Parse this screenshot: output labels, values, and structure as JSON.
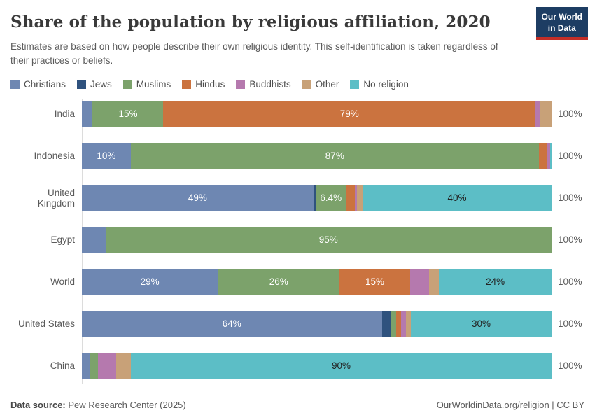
{
  "header": {
    "title": "Share of the population by religious affiliation, 2020",
    "subtitle": "Estimates are based on how people describe their own religious identity. This self-identification is taken regardless of their practices or beliefs.",
    "logo": {
      "line1": "Our World",
      "line2": "in Data",
      "bg_color": "#1d3d63",
      "accent_color": "#c32e27"
    }
  },
  "legend": [
    {
      "label": "Christians",
      "color": "#6e87b2"
    },
    {
      "label": "Jews",
      "color": "#2f527e"
    },
    {
      "label": "Muslims",
      "color": "#7ca26b"
    },
    {
      "label": "Hindus",
      "color": "#cb733f"
    },
    {
      "label": "Buddhists",
      "color": "#b579ae"
    },
    {
      "label": "Other",
      "color": "#c8a178"
    },
    {
      "label": "No religion",
      "color": "#5cbec6"
    }
  ],
  "label_colors": {
    "light": "#ffffff",
    "dark": "#222222"
  },
  "chart_data": {
    "type": "bar",
    "variant": "stacked-horizontal",
    "unit": "%",
    "xlim": [
      0,
      100
    ],
    "bar_total_label": "100%",
    "categories": [
      "India",
      "Indonesia",
      "United Kingdom",
      "Egypt",
      "World",
      "United States",
      "China"
    ],
    "series": [
      {
        "name": "Christians",
        "values": [
          2.3,
          10.4,
          49,
          5,
          29,
          64,
          1.7
        ]
      },
      {
        "name": "Jews",
        "values": [
          0,
          0,
          0.5,
          0,
          0,
          1.8,
          0
        ]
      },
      {
        "name": "Muslims",
        "values": [
          15,
          87,
          6.4,
          95,
          26,
          1.3,
          1.8
        ]
      },
      {
        "name": "Hindus",
        "values": [
          79,
          1.7,
          1.8,
          0,
          15,
          1.0,
          0
        ]
      },
      {
        "name": "Buddhists",
        "values": [
          0.8,
          0.7,
          0.5,
          0,
          4,
          1.1,
          3.9
        ]
      },
      {
        "name": "Other",
        "values": [
          2.6,
          0,
          1.2,
          0,
          2.2,
          1.0,
          3.1
        ]
      },
      {
        "name": "No religion",
        "values": [
          0,
          0.3,
          40,
          0,
          24,
          30,
          90
        ]
      }
    ]
  },
  "rows": [
    {
      "country": "India",
      "segments": [
        {
          "religion": "Christians",
          "value": 2.3
        },
        {
          "religion": "Muslims",
          "value": 15,
          "label": "15%",
          "label_style": "light"
        },
        {
          "religion": "Hindus",
          "value": 79,
          "label": "79%",
          "label_style": "light"
        },
        {
          "religion": "Buddhists",
          "value": 0.8
        },
        {
          "religion": "Other",
          "value": 2.6
        }
      ]
    },
    {
      "country": "Indonesia",
      "segments": [
        {
          "religion": "Christians",
          "value": 10.4,
          "label": "10%",
          "label_style": "light"
        },
        {
          "religion": "Muslims",
          "value": 87,
          "label": "87%",
          "label_style": "light"
        },
        {
          "religion": "Hindus",
          "value": 1.7
        },
        {
          "religion": "Buddhists",
          "value": 0.7
        },
        {
          "religion": "No religion",
          "value": 0.3
        }
      ]
    },
    {
      "country": "United Kingdom",
      "segments": [
        {
          "religion": "Christians",
          "value": 49,
          "label": "49%",
          "label_style": "light"
        },
        {
          "religion": "Jews",
          "value": 0.5
        },
        {
          "religion": "Muslims",
          "value": 6.4,
          "label": "6.4%",
          "label_style": "light"
        },
        {
          "religion": "Hindus",
          "value": 1.8
        },
        {
          "religion": "Buddhists",
          "value": 0.5
        },
        {
          "religion": "Other",
          "value": 1.2
        },
        {
          "religion": "No religion",
          "value": 40,
          "label": "40%",
          "label_style": "dark"
        }
      ]
    },
    {
      "country": "Egypt",
      "segments": [
        {
          "religion": "Christians",
          "value": 5
        },
        {
          "religion": "Muslims",
          "value": 95,
          "label": "95%",
          "label_style": "light"
        }
      ]
    },
    {
      "country": "World",
      "segments": [
        {
          "religion": "Christians",
          "value": 29,
          "label": "29%",
          "label_style": "light"
        },
        {
          "religion": "Muslims",
          "value": 26,
          "label": "26%",
          "label_style": "light"
        },
        {
          "religion": "Hindus",
          "value": 15,
          "label": "15%",
          "label_style": "light"
        },
        {
          "religion": "Buddhists",
          "value": 4
        },
        {
          "religion": "Other",
          "value": 2.2
        },
        {
          "religion": "No religion",
          "value": 24,
          "label": "24%",
          "label_style": "dark"
        }
      ]
    },
    {
      "country": "United States",
      "segments": [
        {
          "religion": "Christians",
          "value": 64,
          "label": "64%",
          "label_style": "light"
        },
        {
          "religion": "Jews",
          "value": 1.8
        },
        {
          "religion": "Muslims",
          "value": 1.3
        },
        {
          "religion": "Hindus",
          "value": 1.0
        },
        {
          "religion": "Buddhists",
          "value": 1.1
        },
        {
          "religion": "Other",
          "value": 1.0
        },
        {
          "religion": "No religion",
          "value": 30,
          "label": "30%",
          "label_style": "dark"
        }
      ]
    },
    {
      "country": "China",
      "segments": [
        {
          "religion": "Christians",
          "value": 1.7
        },
        {
          "religion": "Muslims",
          "value": 1.8
        },
        {
          "religion": "Buddhists",
          "value": 3.9
        },
        {
          "religion": "Other",
          "value": 3.1
        },
        {
          "religion": "No religion",
          "value": 90,
          "label": "90%",
          "label_style": "dark"
        }
      ]
    }
  ],
  "footer": {
    "source_label": "Data source:",
    "source_value": "Pew Research Center (2025)",
    "license": "OurWorldinData.org/religion | CC BY"
  }
}
